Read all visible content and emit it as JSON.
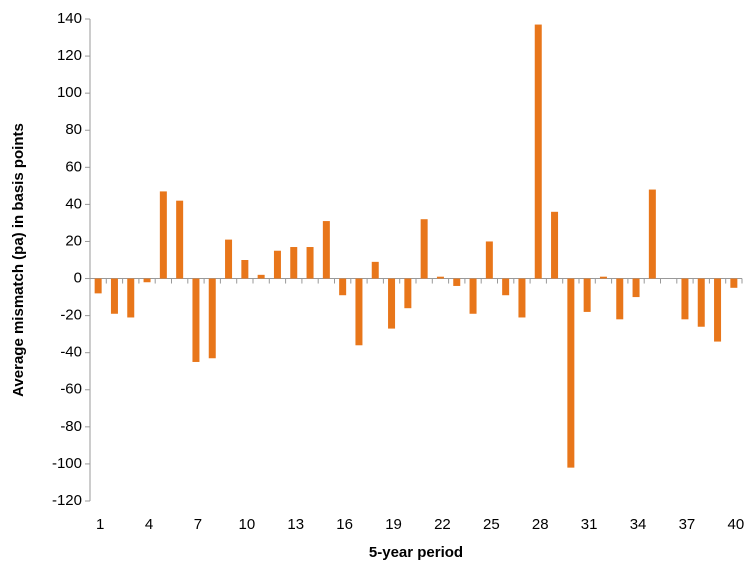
{
  "chart_data": {
    "type": "bar",
    "y_axis_label": "Average mismatch (pa) in basis points",
    "x_axis_label": "5-year period",
    "categories": [
      "1",
      null,
      null,
      "4",
      null,
      null,
      "7",
      null,
      null,
      "10",
      null,
      null,
      "13",
      null,
      null,
      "16",
      null,
      null,
      "19",
      null,
      null,
      "22",
      null,
      null,
      "25",
      null,
      null,
      "28",
      null,
      null,
      "31",
      null,
      null,
      "34",
      null,
      null,
      "37",
      null,
      null,
      "40"
    ],
    "values": [
      -8,
      -19,
      -21,
      -2,
      47,
      42,
      -45,
      -43,
      21,
      10,
      2,
      15,
      17,
      17,
      31,
      -9,
      -36,
      9,
      -27,
      -16,
      32,
      1,
      -4,
      -19,
      20,
      -9,
      -21,
      137,
      36,
      -102,
      -18,
      1,
      -22,
      -10,
      48,
      0,
      -22,
      -26,
      -34,
      -5
    ],
    "color": "#e8761a",
    "ylim": [
      -120,
      140
    ],
    "yticks": [
      -120,
      -100,
      -80,
      -60,
      -40,
      -20,
      0,
      20,
      40,
      60,
      80,
      100,
      120,
      140
    ],
    "negative_tick_color": "#e00000",
    "grid": false
  }
}
